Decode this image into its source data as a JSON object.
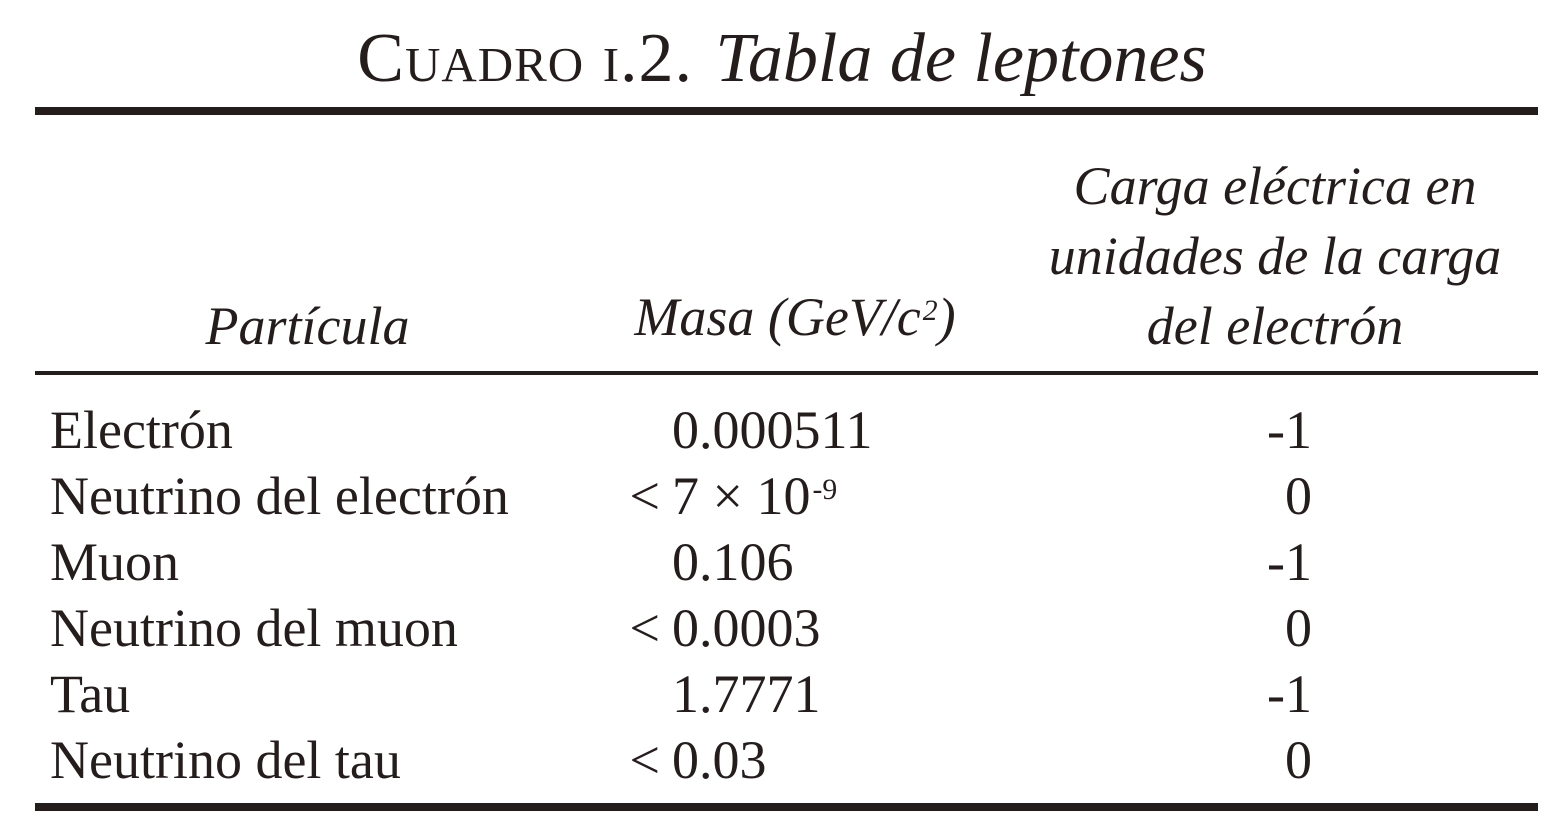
{
  "ink_color": "#241d1c",
  "background_color": "#ffffff",
  "caption": {
    "label": "Cuadro i.2.",
    "title": "Tabla de leptones"
  },
  "table": {
    "headers": {
      "particle": "Partícula",
      "mass": {
        "base": "Masa (GeV/c",
        "sup": "2",
        "close": ")"
      },
      "charge_lines": [
        "Carga eléctrica en",
        "unidades de la carga",
        "del electrón"
      ]
    },
    "rows": [
      {
        "particle": "Electrón",
        "mass_prefix": "",
        "mass": "0.000511",
        "mass_sup": "",
        "charge": "-1"
      },
      {
        "particle": "Neutrino del electrón",
        "mass_prefix": "<",
        "mass": "7 × 10",
        "mass_sup": "-9",
        "charge": "0"
      },
      {
        "particle": "Muon",
        "mass_prefix": "",
        "mass": "0.106",
        "mass_sup": "",
        "charge": "-1"
      },
      {
        "particle": "Neutrino del muon",
        "mass_prefix": "<",
        "mass": "0.0003",
        "mass_sup": "",
        "charge": "0"
      },
      {
        "particle": "Tau",
        "mass_prefix": "",
        "mass": "1.7771",
        "mass_sup": "",
        "charge": "-1"
      },
      {
        "particle": "Neutrino del tau",
        "mass_prefix": "<",
        "mass": "0.03",
        "mass_sup": "",
        "charge": "0"
      }
    ]
  }
}
